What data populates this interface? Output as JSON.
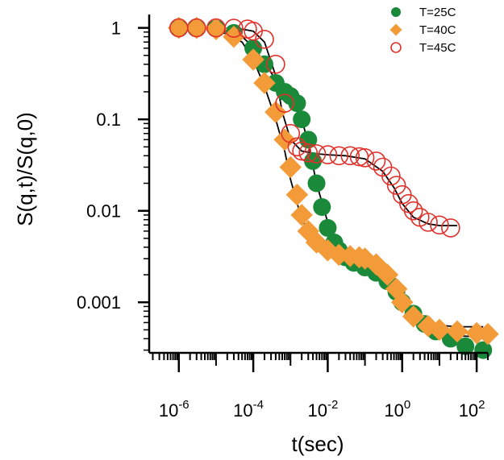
{
  "chart_data": {
    "type": "scatter",
    "title": "",
    "xlabel": "t(sec)",
    "ylabel": "S(q,t)/S(q,0)",
    "xscale": "log",
    "yscale": "log",
    "xlim": [
      1.6e-07,
      200.0
    ],
    "ylim": [
      0.00028,
      1.4
    ],
    "grid": false,
    "legend_position": "top-right",
    "x_ticks": [
      {
        "base": "10",
        "exp": "-6"
      },
      {
        "base": "10",
        "exp": "-4"
      },
      {
        "base": "10",
        "exp": "-2"
      },
      {
        "base": "10",
        "exp": "0"
      },
      {
        "base": "10",
        "exp": "2"
      }
    ],
    "y_ticks": [
      "1",
      "0.1",
      "0.01",
      "0.001"
    ],
    "series": [
      {
        "name": "T=25C",
        "marker": "filled-circle",
        "color": "#1a8a3a",
        "x": [
          1e-06,
          3e-06,
          1e-05,
          3e-05,
          0.0001,
          0.0002,
          0.0004,
          0.0007,
          0.001,
          0.0015,
          0.002,
          0.003,
          0.004,
          0.005,
          0.007,
          0.01,
          0.015,
          0.02,
          0.03,
          0.05,
          0.1,
          0.2,
          0.4,
          0.7,
          1,
          2,
          4,
          8,
          20,
          50,
          150
        ],
        "y": [
          1.0,
          1.0,
          0.98,
          0.88,
          0.6,
          0.4,
          0.25,
          0.2,
          0.18,
          0.15,
          0.1,
          0.06,
          0.035,
          0.02,
          0.011,
          0.0065,
          0.0045,
          0.0037,
          0.0031,
          0.0027,
          0.0024,
          0.0021,
          0.0017,
          0.0013,
          0.001,
          0.00075,
          0.00058,
          0.00048,
          0.0004,
          0.00033,
          0.0003
        ]
      },
      {
        "name": "T=40C",
        "marker": "filled-diamond",
        "color": "#f29b38",
        "x": [
          1e-06,
          3e-06,
          1e-05,
          3e-05,
          0.0001,
          0.0002,
          0.0004,
          0.0007,
          0.001,
          0.0015,
          0.002,
          0.003,
          0.005,
          0.01,
          0.02,
          0.04,
          0.07,
          0.1,
          0.2,
          0.4,
          0.7,
          1,
          2,
          5,
          10,
          30,
          100,
          200
        ],
        "y": [
          1.0,
          1.0,
          0.97,
          0.8,
          0.45,
          0.25,
          0.12,
          0.06,
          0.03,
          0.015,
          0.009,
          0.006,
          0.0045,
          0.0037,
          0.0033,
          0.0032,
          0.0031,
          0.003,
          0.0026,
          0.002,
          0.0014,
          0.001,
          0.0007,
          0.00055,
          0.0005,
          0.00048,
          0.00046,
          0.00045
        ]
      },
      {
        "name": "T=45C",
        "marker": "open-circle",
        "color": "#e0302a",
        "x": [
          1e-06,
          3e-06,
          1e-05,
          3e-05,
          7e-05,
          0.0001,
          0.0002,
          0.0004,
          0.0007,
          0.001,
          0.0015,
          0.002,
          0.003,
          0.005,
          0.01,
          0.02,
          0.04,
          0.07,
          0.1,
          0.2,
          0.3,
          0.5,
          0.7,
          1,
          1.5,
          2,
          3,
          5,
          10,
          20
        ],
        "y": [
          1.0,
          1.0,
          1.0,
          0.99,
          0.97,
          0.92,
          0.75,
          0.4,
          0.15,
          0.07,
          0.05,
          0.045,
          0.043,
          0.042,
          0.041,
          0.04,
          0.04,
          0.039,
          0.038,
          0.035,
          0.03,
          0.024,
          0.019,
          0.015,
          0.012,
          0.01,
          0.0085,
          0.0075,
          0.007,
          0.0065
        ]
      }
    ],
    "fit_lines": [
      {
        "color": "#000000",
        "x": [
          1e-06,
          1e-05,
          5e-05,
          0.0001,
          0.0002,
          0.0004,
          0.0007,
          0.001,
          0.0015,
          0.002,
          0.003,
          0.005,
          0.01,
          0.02,
          0.05,
          0.1,
          0.2,
          0.5,
          1,
          2,
          5,
          10,
          30,
          100,
          150
        ],
        "y": [
          1.0,
          0.98,
          0.8,
          0.62,
          0.42,
          0.27,
          0.21,
          0.18,
          0.14,
          0.1,
          0.055,
          0.02,
          0.0075,
          0.0045,
          0.0032,
          0.0028,
          0.0024,
          0.0017,
          0.0011,
          0.00075,
          0.00055,
          0.00048,
          0.00043,
          0.00042,
          0.00042
        ]
      },
      {
        "color": "#000000",
        "x": [
          1e-06,
          1e-05,
          5e-05,
          0.0001,
          0.0002,
          0.0004,
          0.0007,
          0.001,
          0.002,
          0.005,
          0.01,
          0.03,
          0.1,
          0.3,
          1,
          3,
          10,
          30,
          100,
          150
        ],
        "y": [
          1.0,
          0.97,
          0.7,
          0.45,
          0.23,
          0.1,
          0.045,
          0.022,
          0.008,
          0.0045,
          0.0038,
          0.0033,
          0.003,
          0.0022,
          0.0011,
          0.00068,
          0.00056,
          0.00054,
          0.00054,
          0.00054
        ]
      },
      {
        "color": "#000000",
        "x": [
          1e-06,
          1e-05,
          5e-05,
          0.0001,
          0.0002,
          0.0004,
          0.0006,
          0.001,
          0.002,
          0.005,
          0.01,
          0.03,
          0.1,
          0.3,
          0.6,
          1,
          2,
          5,
          10,
          30
        ],
        "y": [
          1.0,
          1.0,
          0.97,
          0.92,
          0.7,
          0.3,
          0.12,
          0.06,
          0.045,
          0.042,
          0.041,
          0.04,
          0.037,
          0.027,
          0.018,
          0.012,
          0.0085,
          0.0072,
          0.0069,
          0.0069
        ]
      }
    ]
  }
}
